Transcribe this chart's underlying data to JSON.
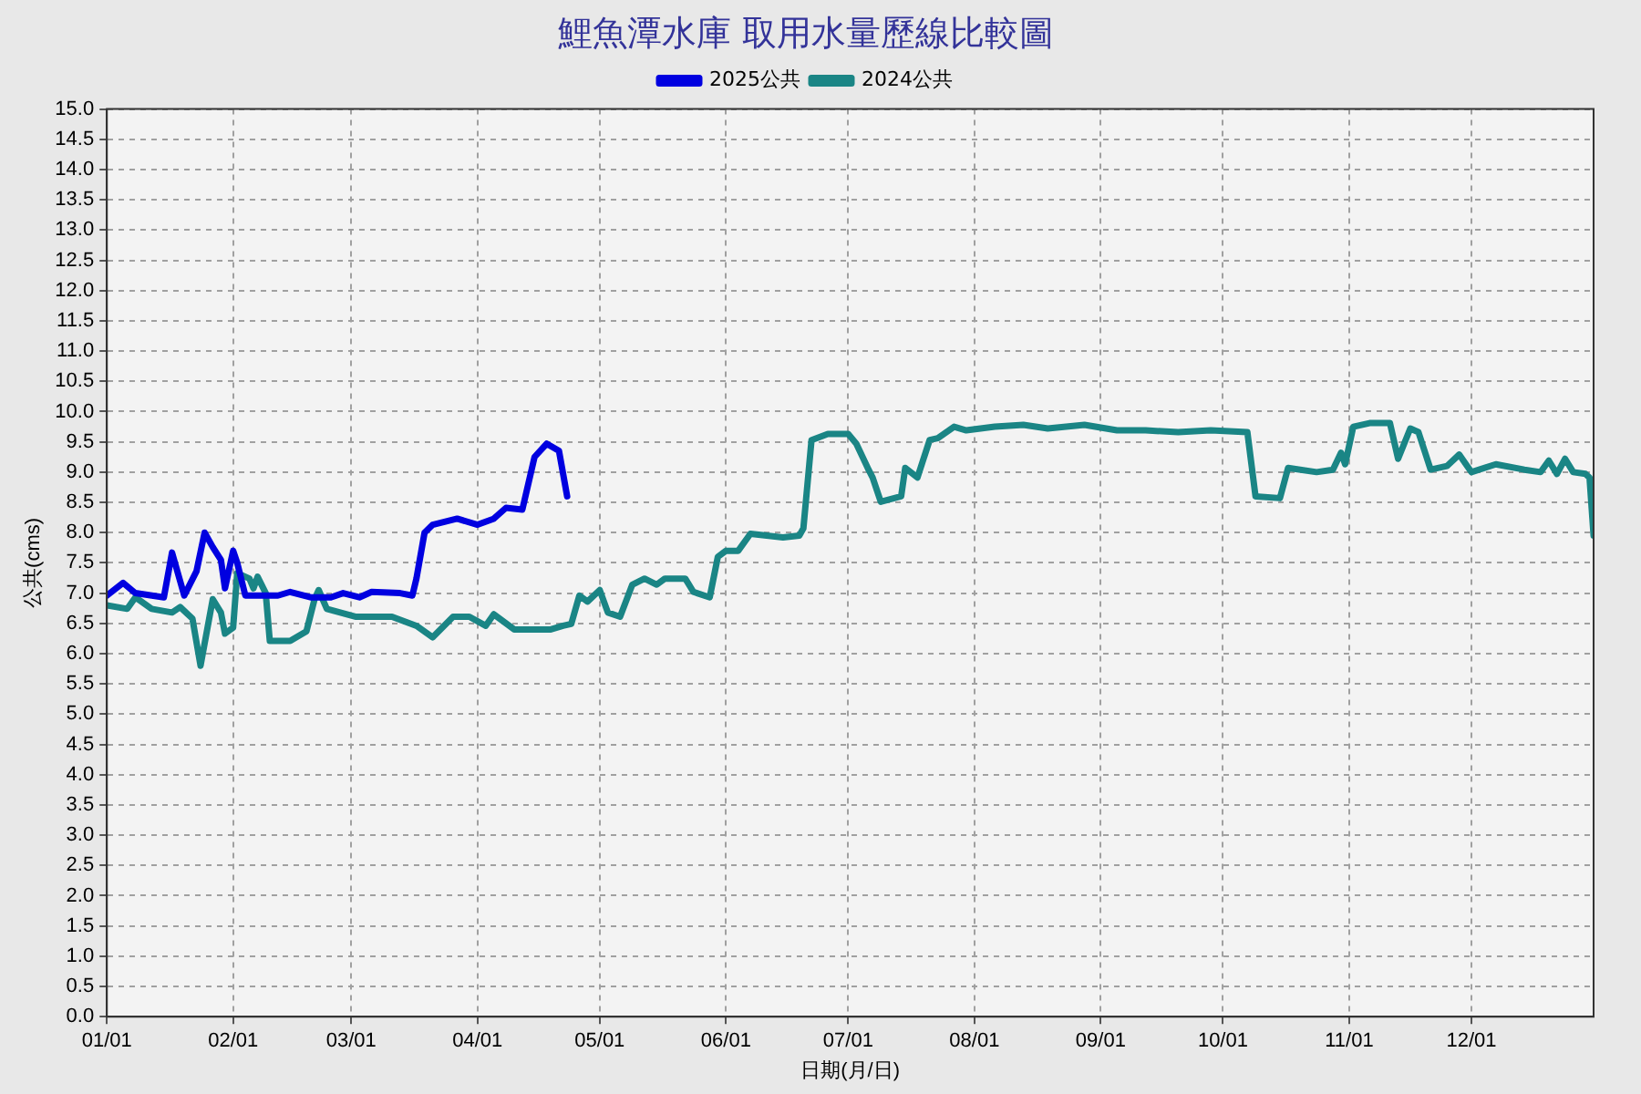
{
  "chart_data": {
    "type": "line",
    "title": "鯉魚潭水庫 取用水量歷線比較圖",
    "xlabel": "日期(月/日)",
    "ylabel": "公共(cms)",
    "xlim": [
      "--01-01",
      "--12-31"
    ],
    "xticks": [
      {
        "value": "--01-01",
        "label": "01/01"
      },
      {
        "value": "--02-01",
        "label": "02/01"
      },
      {
        "value": "--03-01",
        "label": "03/01"
      },
      {
        "value": "--04-01",
        "label": "04/01"
      },
      {
        "value": "--05-01",
        "label": "05/01"
      },
      {
        "value": "--06-01",
        "label": "06/01"
      },
      {
        "value": "--07-01",
        "label": "07/01"
      },
      {
        "value": "--08-01",
        "label": "08/01"
      },
      {
        "value": "--09-01",
        "label": "09/01"
      },
      {
        "value": "--10-01",
        "label": "10/01"
      },
      {
        "value": "--11-01",
        "label": "11/01"
      },
      {
        "value": "--12-01",
        "label": "12/01"
      }
    ],
    "ylim": [
      0,
      15
    ],
    "yticks": [
      {
        "value": 0,
        "label": "0.0"
      },
      {
        "value": 0.5,
        "label": "0.5"
      },
      {
        "value": 1,
        "label": "1.0"
      },
      {
        "value": 1.5,
        "label": "1.5"
      },
      {
        "value": 2,
        "label": "2.0"
      },
      {
        "value": 2.5,
        "label": "2.5"
      },
      {
        "value": 3,
        "label": "3.0"
      },
      {
        "value": 3.5,
        "label": "3.5"
      },
      {
        "value": 4,
        "label": "4.0"
      },
      {
        "value": 4.5,
        "label": "4.5"
      },
      {
        "value": 5,
        "label": "5.0"
      },
      {
        "value": 5.5,
        "label": "5.5"
      },
      {
        "value": 6,
        "label": "6.0"
      },
      {
        "value": 6.5,
        "label": "6.5"
      },
      {
        "value": 7,
        "label": "7.0"
      },
      {
        "value": 7.5,
        "label": "7.5"
      },
      {
        "value": 8,
        "label": "8.0"
      },
      {
        "value": 8.5,
        "label": "8.5"
      },
      {
        "value": 9,
        "label": "9.0"
      },
      {
        "value": 9.5,
        "label": "9.5"
      },
      {
        "value": 10,
        "label": "10.0"
      },
      {
        "value": 10.5,
        "label": "10.5"
      },
      {
        "value": 11,
        "label": "11.0"
      },
      {
        "value": 11.5,
        "label": "11.5"
      },
      {
        "value": 12,
        "label": "12.0"
      },
      {
        "value": 12.5,
        "label": "12.5"
      },
      {
        "value": 13,
        "label": "13.0"
      },
      {
        "value": 13.5,
        "label": "13.5"
      },
      {
        "value": 14,
        "label": "14.0"
      },
      {
        "value": 14.5,
        "label": "14.5"
      },
      {
        "value": 15,
        "label": "15.0"
      }
    ],
    "grid": true,
    "legend": "top",
    "marker": "none",
    "line_style": "solid",
    "series": [
      {
        "name": "2025公共",
        "color": "#0000e0",
        "x": [
          "--01-01",
          "--01-05",
          "--01-08",
          "--01-15",
          "--01-17",
          "--01-20",
          "--01-23",
          "--01-25",
          "--01-27",
          "--01-29",
          "--01-30",
          "--02-01",
          "--02-02",
          "--02-04",
          "--02-12",
          "--02-15",
          "--02-20",
          "--02-25",
          "--02-28",
          "--03-03",
          "--03-06",
          "--03-13",
          "--03-16",
          "--03-17",
          "--03-19",
          "--03-21",
          "--03-27",
          "--04-01",
          "--04-05",
          "--04-08",
          "--04-12",
          "--04-15",
          "--04-18",
          "--04-21",
          "--04-23"
        ],
        "values": [
          6.96,
          7.17,
          7.0,
          6.93,
          7.67,
          6.96,
          7.36,
          8.0,
          7.76,
          7.55,
          7.08,
          7.7,
          7.5,
          6.96,
          6.96,
          7.02,
          6.93,
          6.93,
          7.0,
          6.93,
          7.02,
          7.0,
          6.96,
          7.24,
          8.0,
          8.13,
          8.23,
          8.13,
          8.23,
          8.41,
          8.38,
          9.25,
          9.47,
          9.35,
          8.6
        ]
      },
      {
        "name": "2024公共",
        "color": "#1a8585",
        "x": [
          "--01-01",
          "--01-06",
          "--01-08",
          "--01-12",
          "--01-17",
          "--01-19",
          "--01-22",
          "--01-24",
          "--01-27",
          "--01-29",
          "--01-30",
          "--02-01",
          "--02-02",
          "--02-05",
          "--02-06",
          "--02-07",
          "--02-09",
          "--02-10",
          "--02-15",
          "--02-19",
          "--02-21",
          "--02-22",
          "--02-24",
          "--03-02",
          "--03-11",
          "--03-17",
          "--03-21",
          "--03-26",
          "--03-30",
          "--04-03",
          "--04-05",
          "--04-10",
          "--04-19",
          "--04-22",
          "--04-24",
          "--04-26",
          "--04-28",
          "--05-01",
          "--05-03",
          "--05-06",
          "--05-09",
          "--05-12",
          "--05-15",
          "--05-17",
          "--05-22",
          "--05-24",
          "--05-28",
          "--05-30",
          "--06-01",
          "--06-04",
          "--06-07",
          "--06-15",
          "--06-19",
          "--06-20",
          "--06-22",
          "--06-26",
          "--07-01",
          "--07-03",
          "--07-06",
          "--07-07",
          "--07-09",
          "--07-14",
          "--07-15",
          "--07-18",
          "--07-21",
          "--07-23",
          "--07-27",
          "--07-30",
          "--08-06",
          "--08-13",
          "--08-19",
          "--08-28",
          "--09-05",
          "--09-12",
          "--09-20",
          "--09-28",
          "--10-07",
          "--10-09",
          "--10-15",
          "--10-17",
          "--10-24",
          "--10-28",
          "--10-30",
          "--10-31",
          "--11-02",
          "--11-06",
          "--11-11",
          "--11-13",
          "--11-16",
          "--11-18",
          "--11-21",
          "--11-25",
          "--11-28",
          "--12-01",
          "--12-07",
          "--12-14",
          "--12-18",
          "--12-20",
          "--12-22",
          "--12-24",
          "--12-26",
          "--12-29",
          "--12-30",
          "--12-31"
        ],
        "values": [
          6.8,
          6.74,
          6.93,
          6.74,
          6.68,
          6.77,
          6.58,
          5.8,
          6.9,
          6.68,
          6.33,
          6.43,
          7.33,
          7.24,
          7.08,
          7.27,
          7.0,
          6.21,
          6.21,
          6.37,
          6.9,
          7.05,
          6.74,
          6.61,
          6.61,
          6.46,
          6.27,
          6.61,
          6.61,
          6.46,
          6.65,
          6.4,
          6.4,
          6.46,
          6.49,
          6.96,
          6.86,
          7.05,
          6.68,
          6.61,
          7.14,
          7.24,
          7.14,
          7.24,
          7.24,
          7.02,
          6.93,
          7.6,
          7.7,
          7.7,
          7.98,
          7.92,
          7.95,
          8.07,
          9.53,
          9.63,
          9.63,
          9.47,
          9.04,
          8.91,
          8.51,
          8.6,
          9.07,
          8.91,
          9.53,
          9.56,
          9.75,
          9.69,
          9.75,
          9.78,
          9.72,
          9.78,
          9.69,
          9.69,
          9.66,
          9.69,
          9.66,
          8.6,
          8.57,
          9.07,
          9.0,
          9.04,
          9.32,
          9.13,
          9.75,
          9.81,
          9.81,
          9.22,
          9.72,
          9.66,
          9.04,
          9.1,
          9.29,
          9.0,
          9.13,
          9.04,
          9.0,
          9.19,
          8.97,
          9.22,
          9.0,
          8.97,
          8.91,
          7.95
        ]
      }
    ]
  }
}
